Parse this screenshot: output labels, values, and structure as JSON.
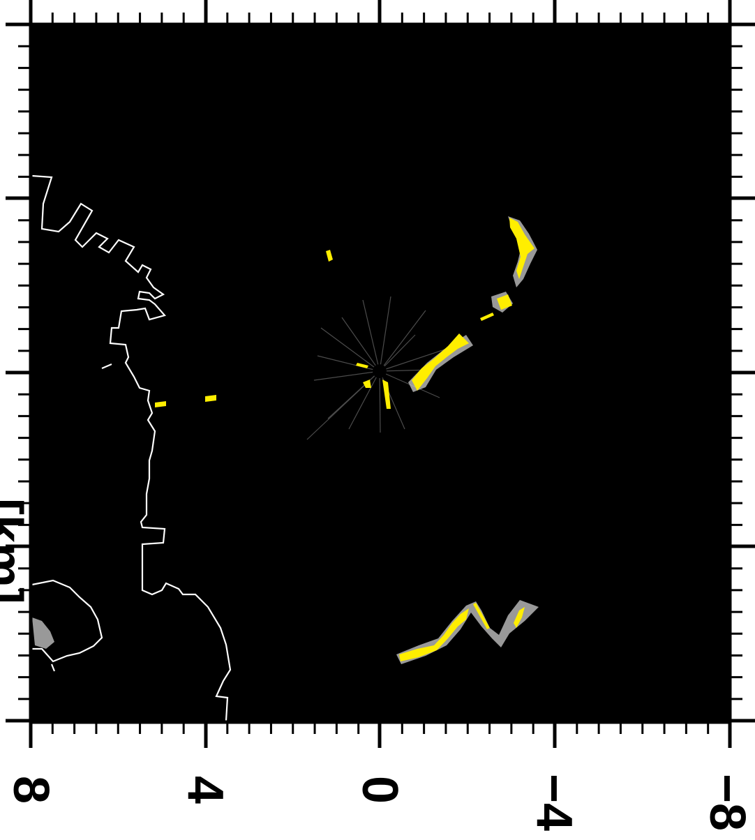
{
  "map": {
    "x_tick_labels": [
      "8",
      "4",
      "0",
      "−4",
      "−8"
    ],
    "y_axis_label_fragment": "[km]",
    "background_color": "#000000",
    "echo_color": "#ffee00",
    "echo_halo_color": "#cccccc",
    "coastline_color": "#ffffff",
    "frame_color": "#000000"
  }
}
